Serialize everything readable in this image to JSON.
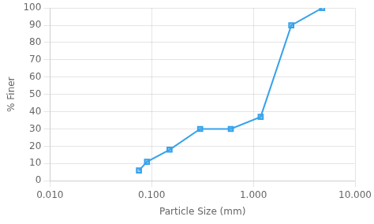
{
  "chart_data": {
    "type": "line",
    "x": [
      0.075,
      0.09,
      0.15,
      0.3,
      0.6,
      1.18,
      2.36,
      4.75
    ],
    "values": [
      6,
      11,
      18,
      30,
      30,
      37,
      90,
      100
    ],
    "xlabel": "Particle Size (mm)",
    "ylabel": "% Finer",
    "log": "x",
    "xlim": [
      0.01,
      10.0
    ],
    "xticks": [
      {
        "value": 0.01,
        "label": "0.010"
      },
      {
        "value": 0.1,
        "label": "0.100"
      },
      {
        "value": 1.0,
        "label": "1.000"
      },
      {
        "value": 10.0,
        "label": "10.000"
      }
    ],
    "ylim": [
      0,
      100
    ],
    "yticks": [
      0,
      10,
      20,
      30,
      40,
      50,
      60,
      70,
      80,
      90,
      100
    ],
    "grid": true,
    "marker": "square"
  }
}
